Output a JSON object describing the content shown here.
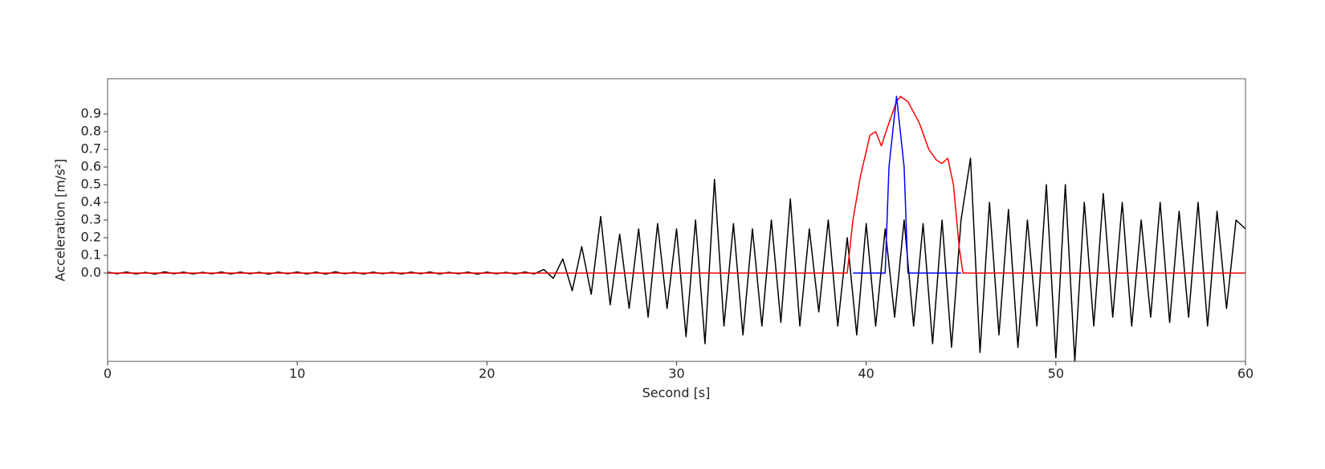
{
  "chart_data": {
    "type": "line",
    "xlabel": "Second [s]",
    "ylabel": "Acceleration [m/s²]",
    "xlim": [
      0,
      60
    ],
    "xticks": [
      0,
      10,
      20,
      30,
      40,
      50,
      60
    ],
    "ylim": [
      -0.5,
      1.1
    ],
    "yticks": [
      {
        "value": 0,
        "label": "0.0"
      },
      0.1,
      0.2,
      0.3,
      0.4,
      0.5,
      0.6,
      0.7,
      0.8,
      0.9
    ],
    "series": [
      {
        "color": "#000000",
        "x": [
          0,
          0.5,
          1,
          1.5,
          2,
          2.5,
          3,
          3.5,
          4,
          4.5,
          5,
          5.5,
          6,
          6.5,
          7,
          7.5,
          8,
          8.5,
          9,
          9.5,
          10,
          10.5,
          11,
          11.5,
          12,
          12.5,
          13,
          13.5,
          14,
          14.5,
          15,
          15.5,
          16,
          16.5,
          17,
          17.5,
          18,
          18.5,
          19,
          19.5,
          20,
          20.5,
          21,
          21.5,
          22,
          22.5,
          23,
          23.5,
          24,
          24.5,
          25,
          25.5,
          26,
          26.5,
          27,
          27.5,
          28,
          28.5,
          29,
          29.5,
          30,
          30.5,
          31,
          31.5,
          32,
          32.5,
          33,
          33.5,
          34,
          34.5,
          35,
          35.5,
          36,
          36.5,
          37,
          37.5,
          38,
          38.5,
          39,
          39.5,
          40,
          40.5,
          41,
          41.5,
          42,
          42.5,
          43,
          43.5,
          44,
          44.5,
          45,
          45.5,
          46,
          46.5,
          47,
          47.5,
          48,
          48.5,
          49,
          49.5,
          50,
          50.5,
          51,
          51.5,
          52,
          52.5,
          53,
          53.5,
          54,
          54.5,
          55,
          55.5,
          56,
          56.5,
          57,
          57.5,
          58,
          58.5,
          59,
          59.5,
          60
        ],
        "values": [
          0.005,
          -0.004,
          0.006,
          -0.005,
          0.004,
          -0.006,
          0.007,
          -0.004,
          0.005,
          -0.005,
          0.004,
          -0.004,
          0.006,
          -0.005,
          0.005,
          -0.004,
          0.004,
          -0.006,
          0.005,
          -0.004,
          0.006,
          -0.005,
          0.005,
          -0.006,
          0.007,
          -0.004,
          0.004,
          -0.005,
          0.005,
          -0.004,
          0.004,
          -0.005,
          0.005,
          -0.004,
          0.006,
          -0.005,
          0.004,
          -0.004,
          0.005,
          -0.006,
          0.005,
          -0.004,
          0.004,
          -0.005,
          0.006,
          -0.005,
          0.02,
          -0.03,
          0.08,
          -0.1,
          0.15,
          -0.12,
          0.32,
          -0.18,
          0.22,
          -0.2,
          0.25,
          -0.25,
          0.28,
          -0.2,
          0.25,
          -0.36,
          0.3,
          -0.4,
          0.53,
          -0.3,
          0.28,
          -0.35,
          0.25,
          -0.3,
          0.3,
          -0.28,
          0.42,
          -0.3,
          0.25,
          -0.22,
          0.3,
          -0.3,
          0.2,
          -0.35,
          0.28,
          -0.3,
          0.25,
          -0.25,
          0.3,
          -0.3,
          0.28,
          -0.4,
          0.3,
          -0.42,
          0.3,
          0.65,
          -0.45,
          0.4,
          -0.35,
          0.36,
          -0.42,
          0.3,
          -0.3,
          0.5,
          -0.48,
          0.5,
          -0.5,
          0.4,
          -0.3,
          0.45,
          -0.25,
          0.4,
          -0.3,
          0.3,
          -0.25,
          0.4,
          -0.28,
          0.35,
          -0.25,
          0.4,
          -0.3,
          0.35,
          -0.2,
          0.3,
          0.25
        ]
      },
      {
        "color": "#ff0000",
        "x": [
          0,
          39,
          39.3,
          39.7,
          40.2,
          40.5,
          40.8,
          41.2,
          41.6,
          41.8,
          42.2,
          42.8,
          43.3,
          43.7,
          44.0,
          44.3,
          44.6,
          44.9,
          45.1,
          60
        ],
        "values": [
          0,
          0,
          0.3,
          0.55,
          0.78,
          0.8,
          0.72,
          0.85,
          0.97,
          1.0,
          0.97,
          0.85,
          0.7,
          0.64,
          0.62,
          0.65,
          0.5,
          0.15,
          0,
          0
        ]
      },
      {
        "color": "#0000ff",
        "x": [
          39.3,
          41.0,
          41.2,
          41.6,
          42.0,
          42.2,
          45.0
        ],
        "values": [
          0,
          0,
          0.6,
          1.0,
          0.6,
          0,
          0
        ]
      }
    ]
  }
}
